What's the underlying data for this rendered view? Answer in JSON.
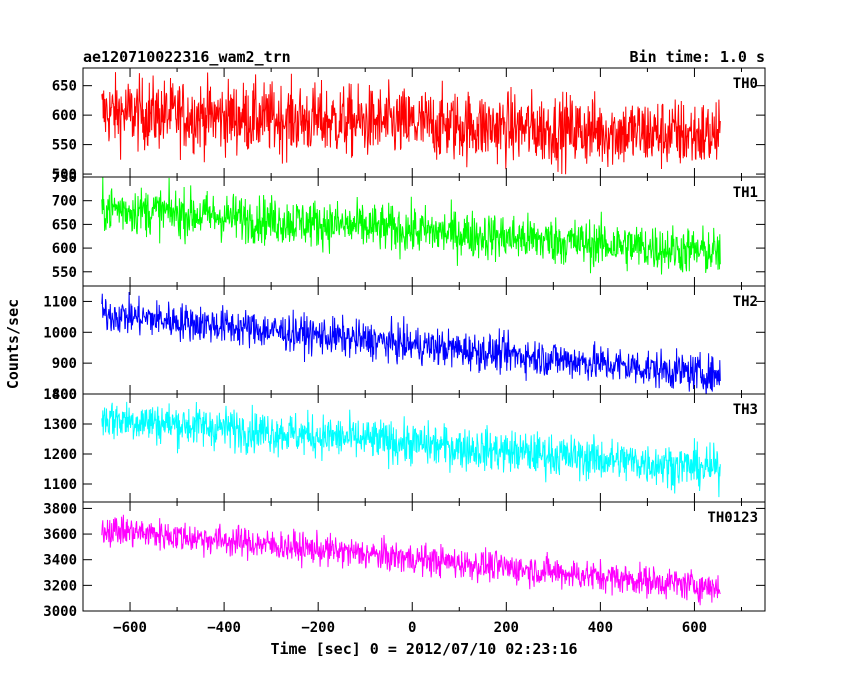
{
  "chart_data": {
    "type": "line",
    "title": "ae120710022316_wam2_trn",
    "subtitle": "Bin time: 1.0 s",
    "xlabel": "Time [sec] 0 = 2012/07/10 02:23:16",
    "ylabel": "Counts/sec",
    "xlim": [
      -700,
      750
    ],
    "x_range": [
      -660,
      655
    ],
    "x_ticks": [
      "−600",
      "−400",
      "−200",
      "0",
      "200",
      "400",
      "600"
    ],
    "panels": [
      {
        "name": "TH0",
        "color": "#ff0000",
        "ylim": [
          495,
          680
        ],
        "yticks": [
          "500",
          "550",
          "600",
          "650"
        ],
        "start": 605,
        "end": 565,
        "noise": 30
      },
      {
        "name": "TH1",
        "color": "#00ff00",
        "ylim": [
          520,
          750
        ],
        "yticks": [
          "550",
          "600",
          "650",
          "700",
          "750"
        ],
        "start": 685,
        "end": 590,
        "noise": 25
      },
      {
        "name": "TH2",
        "color": "#0000ff",
        "ylim": [
          800,
          1150
        ],
        "yticks": [
          "800",
          "900",
          "1000",
          "1100"
        ],
        "start": 1060,
        "end": 860,
        "noise": 30
      },
      {
        "name": "TH3",
        "color": "#00ffff",
        "ylim": [
          1040,
          1400
        ],
        "yticks": [
          "1100",
          "1200",
          "1300",
          "1400"
        ],
        "start": 1320,
        "end": 1150,
        "noise": 35
      },
      {
        "name": "TH0123",
        "color": "#ff00ff",
        "ylim": [
          3000,
          3850
        ],
        "yticks": [
          "3000",
          "3200",
          "3400",
          "3600",
          "3800"
        ],
        "start": 3640,
        "end": 3180,
        "noise": 60
      }
    ]
  }
}
